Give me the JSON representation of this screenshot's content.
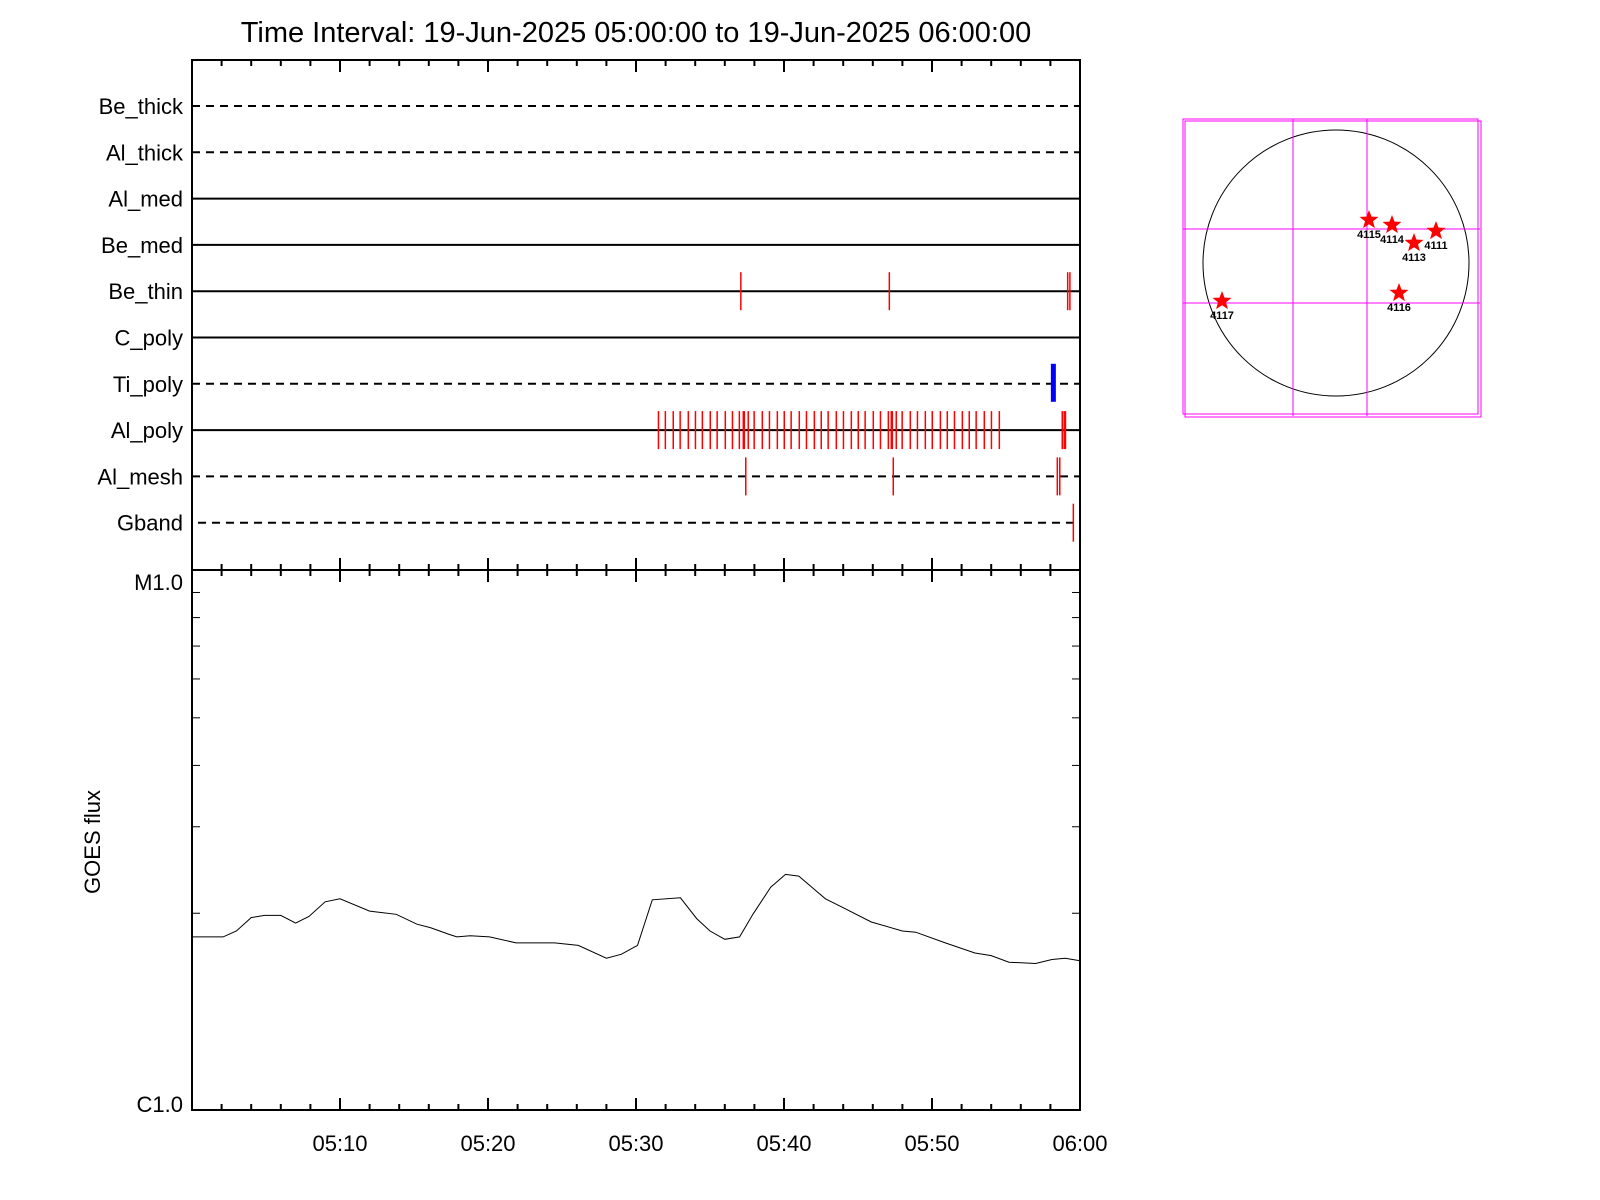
{
  "chart_data": [
    {
      "type": "event-timeline",
      "title": "Time Interval: 19-Jun-2025 05:00:00 to 19-Jun-2025 06:00:00",
      "xlim": [
        "05:00:00",
        "06:00:00"
      ],
      "x_tick_labels": [
        "05:10",
        "05:20",
        "05:30",
        "05:40",
        "05:50",
        "06:00"
      ],
      "rows": [
        {
          "label": "Be_thick",
          "style": "dashed",
          "events": []
        },
        {
          "label": "Al_thick",
          "style": "dashed",
          "events": []
        },
        {
          "label": "Al_med",
          "style": "solid",
          "events": []
        },
        {
          "label": "Be_med",
          "style": "solid",
          "events": []
        },
        {
          "label": "Be_thin",
          "style": "solid",
          "color": "#ff0000",
          "events": [
            "05:37:05",
            "05:47:07",
            "05:59:10",
            "05:59:19"
          ]
        },
        {
          "label": "C_poly",
          "style": "solid",
          "events": []
        },
        {
          "label": "Ti_poly",
          "style": "dashed",
          "color": "#0000ff",
          "events": [
            "05:58:12"
          ]
        },
        {
          "label": "Al_poly",
          "style": "solid",
          "color": "#ff0000",
          "events": [
            "05:31:31",
            "05:31:59",
            "05:32:31",
            "05:32:59",
            "05:33:32",
            "05:34:01",
            "05:34:29",
            "05:35:01",
            "05:35:29",
            "05:36:02",
            "05:36:31",
            "05:36:59",
            "05:37:15",
            "05:37:19",
            "05:37:35",
            "05:37:59",
            "05:38:32",
            "05:39:01",
            "05:39:33",
            "05:40:01",
            "05:40:29",
            "05:41:02",
            "05:41:31",
            "05:42:03",
            "05:42:31",
            "05:42:59",
            "05:43:32",
            "05:44:01",
            "05:44:33",
            "05:45:01",
            "05:45:29",
            "05:46:02",
            "05:46:31",
            "05:47:03",
            "05:47:15",
            "05:47:19",
            "05:47:35",
            "05:47:59",
            "05:48:32",
            "05:49:01",
            "05:49:33",
            "05:50:01",
            "05:50:34",
            "05:51:02",
            "05:51:31",
            "05:52:03",
            "05:52:31",
            "05:52:59",
            "05:53:32",
            "05:54:01",
            "05:54:33",
            "05:58:48",
            "05:58:56",
            "05:59:01"
          ]
        },
        {
          "label": "Al_mesh",
          "style": "dashed",
          "color": "#ff0000",
          "events": [
            "05:37:25",
            "05:47:23",
            "05:58:28",
            "05:58:38"
          ]
        },
        {
          "label": "Gband",
          "style": "dashed",
          "color": "#ff0000",
          "events": [
            "05:59:33"
          ]
        }
      ]
    },
    {
      "type": "line",
      "ylabel": "GOES flux",
      "yscale": "log",
      "ylim": [
        7.95e-07,
        1e-05
      ],
      "y_tick_labels": [
        {
          "label": "M1.0",
          "value": 1e-05
        },
        {
          "label": "C1.0",
          "value": 7.95e-07
        }
      ],
      "xlim": [
        "05:00:00",
        "06:00:00"
      ],
      "x_tick_labels": [
        "05:10",
        "05:20",
        "05:30",
        "05:40",
        "05:50",
        "06:00"
      ],
      "series": [
        {
          "color": "#000000",
          "x": [
            "05:00:00",
            "05:02:06",
            "05:03:00",
            "05:04:00",
            "05:04:54",
            "05:06:00",
            "05:07:00",
            "05:07:54",
            "05:09:00",
            "05:10:00",
            "05:12:00",
            "05:13:48",
            "05:15:12",
            "05:16:06",
            "05:17:24",
            "05:17:54",
            "05:18:48",
            "05:20:06",
            "05:21:54",
            "05:24:30",
            "05:26:06",
            "05:28:00",
            "05:29:00",
            "05:30:06",
            "05:31:06",
            "05:33:00",
            "05:34:06",
            "05:35:00",
            "05:36:00",
            "05:37:00",
            "05:37:54",
            "05:39:06",
            "05:40:06",
            "05:41:00",
            "05:42:48",
            "05:43:54",
            "05:45:54",
            "05:48:00",
            "05:48:54",
            "05:50:54",
            "05:52:54",
            "05:54:00",
            "05:55:12",
            "05:57:00",
            "05:58:06",
            "05:59:00",
            "06:00:00"
          ],
          "y": [
            1.79e-06,
            1.79e-06,
            1.84e-06,
            1.96e-06,
            1.98e-06,
            1.98e-06,
            1.91e-06,
            1.97e-06,
            2.11e-06,
            2.14e-06,
            2.02e-06,
            1.99e-06,
            1.9e-06,
            1.87e-06,
            1.81e-06,
            1.79e-06,
            1.8e-06,
            1.79e-06,
            1.74e-06,
            1.74e-06,
            1.72e-06,
            1.62e-06,
            1.65e-06,
            1.72e-06,
            2.13e-06,
            2.15e-06,
            1.95e-06,
            1.84e-06,
            1.77e-06,
            1.79e-06,
            1.99e-06,
            2.26e-06,
            2.4e-06,
            2.38e-06,
            2.14e-06,
            2.06e-06,
            1.92e-06,
            1.84e-06,
            1.83e-06,
            1.74e-06,
            1.66e-06,
            1.64e-06,
            1.59e-06,
            1.58e-06,
            1.61e-06,
            1.62e-06,
            1.6e-06
          ]
        }
      ]
    },
    {
      "type": "solar-disk-map",
      "frame_color": "#ff00ff",
      "marker_color": "#ff0000",
      "marker": "star",
      "regions": [
        "4115",
        "4114",
        "4113",
        "4111",
        "4116",
        "4117"
      ]
    }
  ]
}
